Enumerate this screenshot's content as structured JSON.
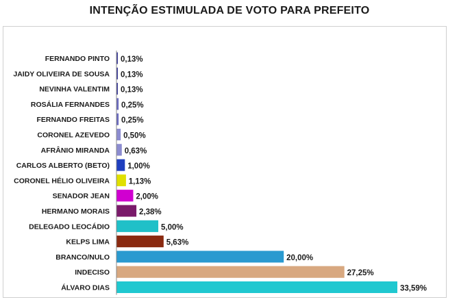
{
  "chart_data": {
    "type": "bar",
    "orientation": "horizontal",
    "title": "INTENÇÃO ESTIMULADA DE VOTO PARA PREFEITO",
    "xlim": [
      0,
      35
    ],
    "grid": false,
    "legend": "none",
    "categories": [
      "FERNANDO PINTO",
      "JAIDY OLIVEIRA DE SOUSA",
      "NEVINHA VALENTIM",
      "ROSÁLIA FERNANDES",
      "FERNANDO FREITAS",
      "CORONEL AZEVEDO",
      "AFRÂNIO MIRANDA",
      "CARLOS ALBERTO (BETO)",
      "CORONEL HÉLIO OLIVEIRA",
      "SENADOR JEAN",
      "HERMANO MORAIS",
      "DELEGADO LEOCÁDIO",
      "KELPS LIMA",
      "BRANCO/NULO",
      "INDECISO",
      "ÁLVARO DIAS"
    ],
    "values": [
      0.13,
      0.13,
      0.13,
      0.25,
      0.25,
      0.5,
      0.63,
      1.0,
      1.13,
      2.0,
      2.38,
      5.0,
      5.63,
      20.0,
      27.25,
      33.59
    ],
    "value_labels": [
      "0,13%",
      "0,13%",
      "0,13%",
      "0,25%",
      "0,25%",
      "0,50%",
      "0,63%",
      "1,00%",
      "1,13%",
      "2,00%",
      "2,38%",
      "5,00%",
      "5,63%",
      "20,00%",
      "27,25%",
      "33,59%"
    ],
    "colors": [
      "#3a3a9a",
      "#3a3a9a",
      "#3a3a9a",
      "#6a6ac0",
      "#6a6ac0",
      "#8c8cd0",
      "#8c8cd0",
      "#1f3fbf",
      "#e0e000",
      "#d000d0",
      "#7a1a6a",
      "#20c0c8",
      "#8a2a10",
      "#2a9ad0",
      "#d8a880",
      "#20c8d0"
    ]
  }
}
